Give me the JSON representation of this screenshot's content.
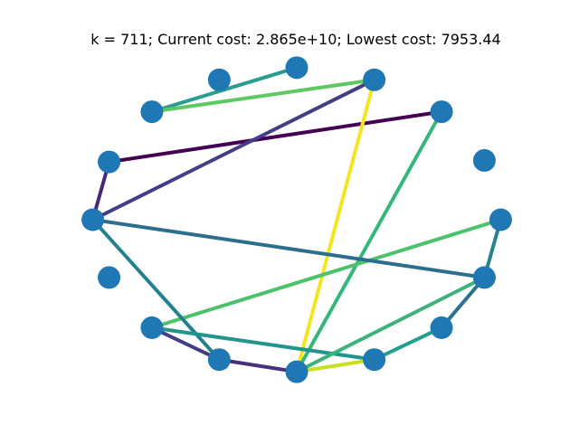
{
  "chart_data": {
    "type": "scatter",
    "subtype": "tsp-route-graph",
    "title": "k = 711; Current cost: 2.865e+10; Lowest cost: 7953.44",
    "xlabel": "",
    "ylabel": "",
    "axes_visible": false,
    "grid": false,
    "legend": "none",
    "xlim": [
      -1.1,
      1.1
    ],
    "ylim": [
      -1.1,
      1.1
    ],
    "node_color": "#1f77b4",
    "edge_colormap": "viridis",
    "nodes": [
      {
        "id": 0,
        "x": 1.0,
        "y": 0.0
      },
      {
        "id": 1,
        "x": 0.92,
        "y": 0.39
      },
      {
        "id": 2,
        "x": 0.71,
        "y": 0.71
      },
      {
        "id": 3,
        "x": 0.38,
        "y": 0.92
      },
      {
        "id": 4,
        "x": 0.0,
        "y": 1.0
      },
      {
        "id": 5,
        "x": -0.38,
        "y": 0.92
      },
      {
        "id": 6,
        "x": -0.71,
        "y": 0.71
      },
      {
        "id": 7,
        "x": -0.92,
        "y": 0.38
      },
      {
        "id": 8,
        "x": -1.0,
        "y": 0.0
      },
      {
        "id": 9,
        "x": -0.92,
        "y": -0.38
      },
      {
        "id": 10,
        "x": -0.71,
        "y": -0.71
      },
      {
        "id": 11,
        "x": -0.38,
        "y": -0.92
      },
      {
        "id": 12,
        "x": 0.0,
        "y": -1.0
      },
      {
        "id": 13,
        "x": 0.38,
        "y": -0.92
      },
      {
        "id": 14,
        "x": 0.71,
        "y": -0.71
      },
      {
        "id": 15,
        "x": 0.92,
        "y": -0.38
      }
    ],
    "edges": [
      {
        "from": 4,
        "to": 6,
        "color": "#2a9d8f"
      },
      {
        "from": 6,
        "to": 3,
        "color": "#5ec962"
      },
      {
        "from": 2,
        "to": 7,
        "color": "#440154"
      },
      {
        "from": 3,
        "to": 8,
        "color": "#433e85"
      },
      {
        "from": 7,
        "to": 8,
        "color": "#482878"
      },
      {
        "from": 3,
        "to": 12,
        "color": "#f3e51f"
      },
      {
        "from": 2,
        "to": 12,
        "color": "#35b779"
      },
      {
        "from": 0,
        "to": 10,
        "color": "#4cc26c"
      },
      {
        "from": 8,
        "to": 15,
        "color": "#2c6e8e"
      },
      {
        "from": 8,
        "to": 11,
        "color": "#23808e"
      },
      {
        "from": 10,
        "to": 13,
        "color": "#21948b"
      },
      {
        "from": 10,
        "to": 11,
        "color": "#433e85"
      },
      {
        "from": 11,
        "to": 12,
        "color": "#46307e"
      },
      {
        "from": 12,
        "to": 13,
        "color": "#c8e020"
      },
      {
        "from": 12,
        "to": 15,
        "color": "#3ab37a"
      },
      {
        "from": 13,
        "to": 14,
        "color": "#21a08a"
      },
      {
        "from": 14,
        "to": 15,
        "color": "#2c728e"
      },
      {
        "from": 15,
        "to": 0,
        "color": "#26828e"
      }
    ]
  }
}
